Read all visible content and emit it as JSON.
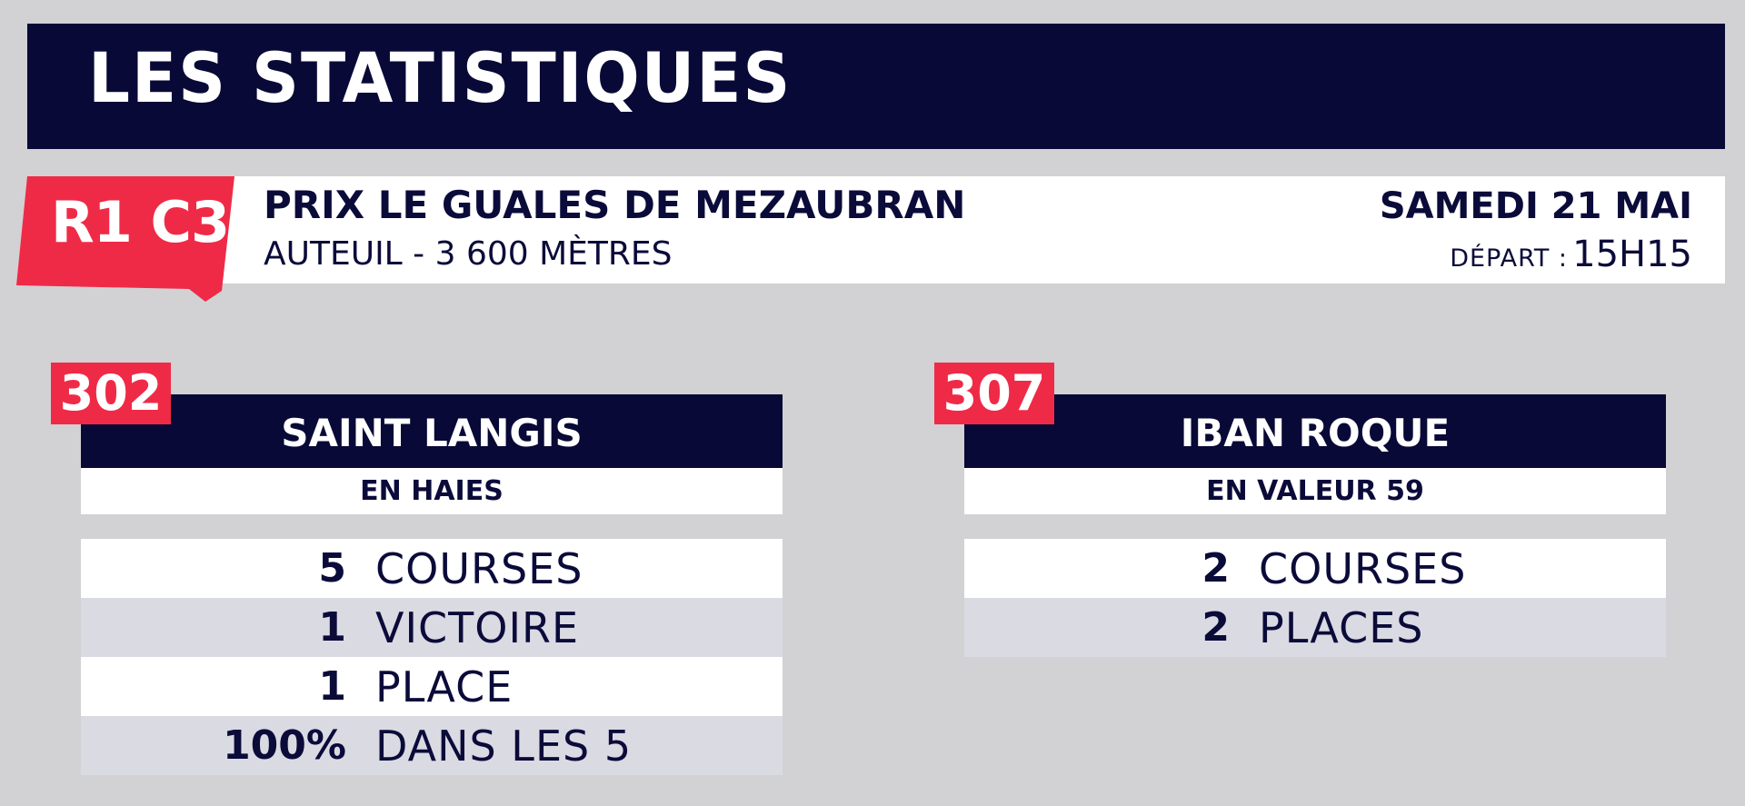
{
  "header": {
    "title": "LES STATISTIQUES"
  },
  "race": {
    "code": "R1 C3",
    "name": "PRIX LE GUALES DE MEZAUBRAN",
    "place": "AUTEUIL - 3 600 MÈTRES",
    "date": "SAMEDI 21 MAI",
    "depart_label": "DÉPART :",
    "depart_time": "15H15"
  },
  "colors": {
    "navy": "#080936",
    "red": "#ef2a47",
    "background": "#d2d1d3"
  },
  "cards": [
    {
      "number": "302",
      "name": "SAINT LANGIS",
      "subtitle": "EN HAIES",
      "stats": [
        {
          "value": "5",
          "label": "COURSES"
        },
        {
          "value": "1",
          "label": "VICTOIRE"
        },
        {
          "value": "1",
          "label": "PLACE"
        },
        {
          "value": "100%",
          "label": "DANS LES 5"
        }
      ]
    },
    {
      "number": "307",
      "name": "IBAN ROQUE",
      "subtitle": "EN VALEUR 59",
      "stats": [
        {
          "value": "2",
          "label": "COURSES"
        },
        {
          "value": "2",
          "label": "PLACES"
        }
      ]
    }
  ]
}
